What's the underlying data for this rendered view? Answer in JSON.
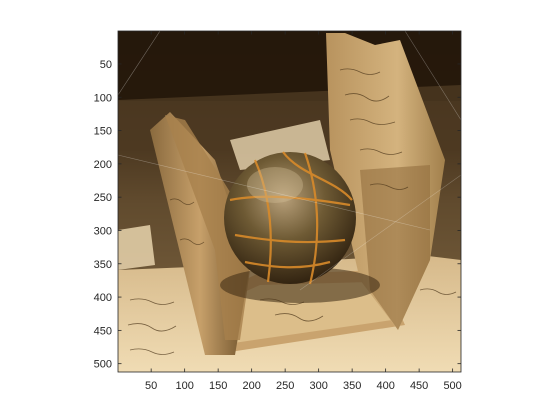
{
  "chart_data": {
    "type": "image",
    "title": "",
    "xlabel": "",
    "ylabel": "",
    "xlim": [
      0.5,
      512.5
    ],
    "ylim": [
      0.5,
      512.5
    ],
    "y_direction": "reversed",
    "grid": false,
    "xticks": [
      50,
      100,
      150,
      200,
      250,
      300,
      350,
      400,
      450,
      500
    ],
    "yticks": [
      50,
      100,
      150,
      200,
      250,
      300,
      350,
      400,
      450,
      500
    ],
    "xtick_labels": [
      "50",
      "100",
      "150",
      "200",
      "250",
      "300",
      "350",
      "400",
      "450",
      "500"
    ],
    "ytick_labels": [
      "50",
      "100",
      "150",
      "200",
      "250",
      "300",
      "350",
      "400",
      "450",
      "500"
    ]
  },
  "colors": {
    "axes_line": "#262626",
    "background": "#ffffff",
    "sphere_highlight": "#c8a878",
    "sphere_dark": "#3a2a14",
    "sphere_crack": "#d88a2a",
    "paper_light": "#e9d6b0",
    "paper_mid": "#c9a46e",
    "paper_dark": "#7a5a30",
    "backdrop_dark": "#1e1408"
  }
}
